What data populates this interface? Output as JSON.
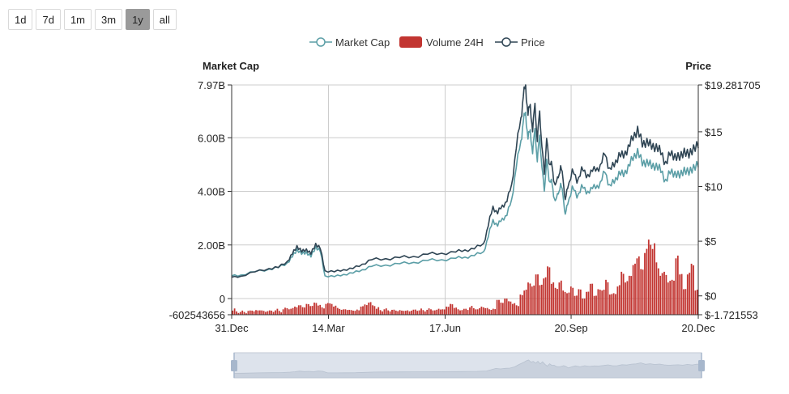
{
  "range_buttons": [
    {
      "label": "1d",
      "active": false
    },
    {
      "label": "7d",
      "active": false
    },
    {
      "label": "1m",
      "active": false
    },
    {
      "label": "3m",
      "active": false
    },
    {
      "label": "1y",
      "active": true
    },
    {
      "label": "all",
      "active": false
    }
  ],
  "colors": {
    "market_cap": "#5b9ea6",
    "volume": "#c23531",
    "price": "#2f4554",
    "grid": "#cccccc",
    "zoom_fill": "#dde3ec",
    "zoom_handle": "#a7b7cc"
  },
  "chart_data": {
    "type": "line",
    "title": "",
    "x_labels": [
      "31.Dec",
      "14.Mar",
      "17.Jun",
      "20.Sep",
      "20.Dec"
    ],
    "x_range": [
      "31.Dec",
      "20.Dec"
    ],
    "left_axis": {
      "title": "Market Cap",
      "ticks": [
        "7.97B",
        "6.00B",
        "4.00B",
        "2.00B",
        "0",
        "-602543656"
      ],
      "range": [
        -602543656,
        7970000000
      ]
    },
    "right_axis": {
      "title": "Price",
      "ticks": [
        "$19.281705",
        "$15",
        "$10",
        "$5",
        "$0",
        "$-1.721553"
      ],
      "range": [
        -1.721553,
        19.281705
      ]
    },
    "legend": [
      "Market Cap",
      "Volume 24H",
      "Price"
    ],
    "series": [
      {
        "name": "Price",
        "axis": "right",
        "x": [
          0.0,
          0.02,
          0.05,
          0.08,
          0.1,
          0.12,
          0.13,
          0.14,
          0.15,
          0.16,
          0.17,
          0.18,
          0.19,
          0.2,
          0.22,
          0.24,
          0.26,
          0.28,
          0.3,
          0.33,
          0.36,
          0.39,
          0.42,
          0.45,
          0.48,
          0.5,
          0.52,
          0.54,
          0.55,
          0.56,
          0.57,
          0.58,
          0.59,
          0.6,
          0.61,
          0.62,
          0.625,
          0.63,
          0.635,
          0.64,
          0.645,
          0.65,
          0.655,
          0.66,
          0.665,
          0.67,
          0.675,
          0.68,
          0.685,
          0.69,
          0.695,
          0.7,
          0.705,
          0.71,
          0.715,
          0.72,
          0.73,
          0.74,
          0.75,
          0.76,
          0.77,
          0.78,
          0.79,
          0.8,
          0.81,
          0.82,
          0.83,
          0.84,
          0.85,
          0.86,
          0.87,
          0.88,
          0.89,
          0.9,
          0.91,
          0.92,
          0.93,
          0.94,
          0.95,
          0.96,
          0.97,
          0.98,
          0.99,
          1.0
        ],
        "values": [
          1.7,
          1.8,
          2.2,
          2.5,
          2.6,
          3.2,
          3.8,
          4.6,
          4.0,
          4.3,
          3.8,
          4.8,
          4.3,
          2.3,
          2.2,
          2.4,
          2.5,
          2.9,
          3.3,
          3.4,
          3.5,
          3.6,
          3.8,
          3.9,
          4.0,
          4.2,
          4.3,
          4.8,
          6.4,
          8.2,
          7.5,
          8.3,
          8.6,
          10.2,
          13.5,
          16.3,
          18.2,
          19.28,
          16.5,
          17.5,
          15.0,
          17.6,
          14.1,
          16.9,
          13.6,
          11.1,
          14.4,
          12.1,
          12.3,
          10.5,
          10.3,
          10.8,
          11.9,
          10.7,
          8.8,
          9.8,
          11.6,
          10.3,
          11.8,
          10.8,
          11.5,
          11.4,
          12.0,
          12.9,
          11.7,
          11.8,
          13.1,
          12.6,
          13.8,
          14.2,
          15.5,
          13.6,
          14.4,
          13.4,
          13.9,
          12.9,
          12.3,
          12.8,
          13.0,
          12.4,
          13.5,
          12.6,
          13.8,
          13.5
        ]
      },
      {
        "name": "Market Cap",
        "axis": "left",
        "x": [
          0.0,
          0.02,
          0.05,
          0.08,
          0.1,
          0.12,
          0.13,
          0.14,
          0.15,
          0.16,
          0.17,
          0.18,
          0.19,
          0.2,
          0.22,
          0.24,
          0.26,
          0.28,
          0.3,
          0.33,
          0.36,
          0.39,
          0.42,
          0.45,
          0.48,
          0.5,
          0.52,
          0.54,
          0.55,
          0.56,
          0.57,
          0.58,
          0.59,
          0.6,
          0.61,
          0.62,
          0.625,
          0.63,
          0.635,
          0.64,
          0.645,
          0.65,
          0.655,
          0.66,
          0.665,
          0.67,
          0.675,
          0.68,
          0.685,
          0.69,
          0.695,
          0.7,
          0.705,
          0.71,
          0.715,
          0.72,
          0.73,
          0.74,
          0.75,
          0.76,
          0.77,
          0.78,
          0.79,
          0.8,
          0.81,
          0.82,
          0.83,
          0.84,
          0.85,
          0.86,
          0.87,
          0.88,
          0.89,
          0.9,
          0.91,
          0.92,
          0.93,
          0.94,
          0.95,
          0.96,
          0.97,
          0.98,
          0.99,
          1.0
        ],
        "values": [
          0.85,
          0.88,
          1.0,
          1.1,
          1.15,
          1.35,
          1.55,
          1.85,
          1.65,
          1.75,
          1.55,
          1.95,
          1.75,
          0.85,
          0.82,
          0.9,
          0.95,
          1.08,
          1.2,
          1.25,
          1.3,
          1.35,
          1.42,
          1.45,
          1.5,
          1.55,
          1.6,
          1.75,
          2.3,
          2.95,
          2.7,
          3.0,
          3.1,
          3.7,
          4.9,
          5.9,
          6.6,
          6.95,
          5.95,
          6.3,
          5.4,
          6.35,
          5.1,
          6.1,
          4.9,
          4.0,
          5.2,
          4.4,
          4.45,
          3.8,
          3.7,
          3.9,
          4.3,
          3.85,
          3.15,
          3.5,
          4.2,
          3.75,
          4.25,
          3.9,
          4.15,
          4.1,
          4.35,
          4.7,
          4.25,
          4.3,
          4.75,
          4.55,
          5.0,
          5.15,
          5.6,
          4.95,
          5.2,
          4.85,
          5.05,
          4.7,
          4.45,
          4.65,
          4.75,
          4.5,
          4.9,
          4.6,
          5.0,
          4.9
        ]
      },
      {
        "name": "Volume 24H",
        "axis": "left",
        "type": "bar",
        "values": [
          -0.45,
          -0.48,
          -0.5,
          -0.5,
          -0.46,
          -0.45,
          -0.43,
          -0.44,
          -0.46,
          -0.47,
          -0.45,
          -0.44,
          -0.46,
          -0.4,
          -0.36,
          -0.38,
          -0.3,
          -0.25,
          -0.32,
          -0.2,
          -0.28,
          -0.15,
          -0.26,
          -0.33,
          -0.2,
          -0.18,
          -0.3,
          -0.35,
          -0.42,
          -0.4,
          -0.42,
          -0.45,
          -0.41,
          -0.3,
          -0.22,
          -0.15,
          -0.25,
          -0.38,
          -0.43,
          -0.4,
          -0.44,
          -0.42,
          -0.45,
          -0.43,
          -0.46,
          -0.44,
          -0.45,
          -0.41,
          -0.44,
          -0.43,
          -0.42,
          -0.4,
          -0.44,
          -0.38,
          -0.4,
          -0.3,
          -0.2,
          -0.35,
          -0.4,
          -0.43,
          -0.38,
          -0.33,
          -0.36,
          -0.4,
          -0.3,
          -0.36,
          -0.4,
          -0.38,
          -0.05,
          -0.15,
          0.0,
          -0.1,
          -0.2,
          -0.25,
          0.15,
          0.3,
          0.6,
          0.45,
          0.9,
          0.5,
          0.75,
          1.2,
          0.55,
          0.4,
          0.6,
          0.3,
          0.2,
          0.45,
          0.1,
          0.35,
          0.0,
          0.25,
          0.55,
          0.1,
          0.35,
          0.3,
          0.7,
          0.15,
          0.2,
          0.45,
          1.0,
          0.6,
          0.85,
          1.25,
          1.5,
          1.1,
          1.7,
          2.2,
          1.85,
          1.35,
          0.85,
          1.0,
          0.6,
          0.7,
          1.5,
          0.9,
          0.35,
          0.9,
          1.3,
          0.3
        ]
      }
    ]
  }
}
